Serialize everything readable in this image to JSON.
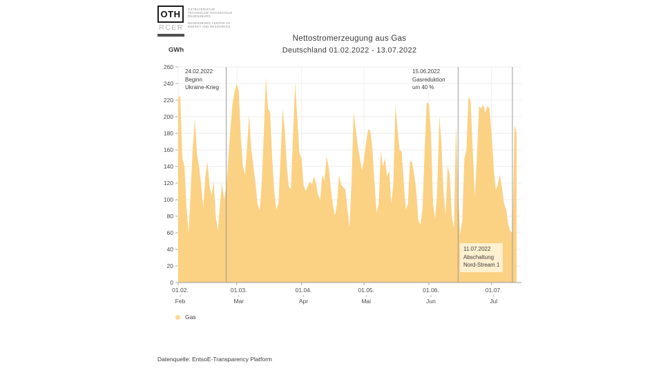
{
  "logo": {
    "oth": "OTH",
    "rcer": "RCER",
    "inst_line1": "Ostbayerische",
    "inst_line2": "Technische Hochschule",
    "inst_line3": "Regensburg",
    "center_line1": "Regensburg Center of",
    "center_line2": "Energy and Resources"
  },
  "chart": {
    "title": "Nettostromerzeugung aus Gas",
    "subtitle": "Deutschland 01.02.2022 - 13.07.2022",
    "y_unit": "GWh"
  },
  "legend": {
    "label": "Gas",
    "color": "#fbd184"
  },
  "footer": {
    "source": "Datenquelle: EntsoE-Transparency Platform"
  },
  "chart_data": {
    "type": "area",
    "title": "Nettostromerzeugung aus Gas",
    "subtitle": "Deutschland 01.02.2022 - 13.07.2022",
    "xlabel": "",
    "ylabel": "GWh",
    "ylim": [
      0,
      260
    ],
    "ytick_step": 20,
    "grid": true,
    "legend_position": "bottom-left",
    "x_start_date": "01.02.2022",
    "x_end_date": "13.07.2022",
    "x_ticks": [
      {
        "index": 0,
        "label": "01.02.",
        "month": "Feb"
      },
      {
        "index": 28,
        "label": "01.03.",
        "month": "Mar"
      },
      {
        "index": 59,
        "label": "01.04.",
        "month": "Apr"
      },
      {
        "index": 89,
        "label": "01.05.",
        "month": "Mai"
      },
      {
        "index": 120,
        "label": "01.06.",
        "month": "Jun"
      },
      {
        "index": 150,
        "label": "01.07.",
        "month": "Jul"
      }
    ],
    "series": [
      {
        "name": "Gas",
        "color": "#fbd184",
        "unit": "GWh",
        "values": [
          222,
          226,
          150,
          140,
          90,
          60,
          110,
          165,
          198,
          155,
          140,
          118,
          90,
          128,
          146,
          118,
          105,
          122,
          80,
          62,
          95,
          120,
          100,
          115,
          150,
          185,
          215,
          230,
          240,
          232,
          175,
          140,
          130,
          165,
          203,
          160,
          141,
          120,
          95,
          87,
          120,
          180,
          248,
          210,
          205,
          150,
          110,
          88,
          95,
          150,
          209,
          185,
          140,
          115,
          113,
          180,
          241,
          200,
          157,
          150,
          118,
          110,
          116,
          122,
          118,
          128,
          120,
          105,
          100,
          130,
          122,
          152,
          140,
          115,
          95,
          80,
          95,
          130,
          118,
          115,
          112,
          90,
          66,
          120,
          206,
          185,
          165,
          150,
          135,
          150,
          170,
          185,
          183,
          160,
          120,
          84,
          95,
          159,
          140,
          150,
          128,
          135,
          95,
          118,
          214,
          185,
          160,
          158,
          120,
          88,
          95,
          147,
          145,
          130,
          110,
          75,
          70,
          90,
          160,
          218,
          215,
          180,
          95,
          77,
          110,
          201,
          170,
          110,
          82,
          141,
          130,
          80,
          65,
          191,
          110,
          58,
          75,
          150,
          160,
          225,
          218,
          160,
          102,
          150,
          213,
          210,
          215,
          205,
          213,
          210,
          180,
          140,
          112,
          118,
          130,
          115,
          95,
          88,
          70,
          62,
          60,
          190,
          180
        ]
      }
    ],
    "annotations": [
      {
        "day_index": 23,
        "boxed": false,
        "lines": [
          "24.02.2022",
          "Beginn",
          "Ukraine-Krieg"
        ]
      },
      {
        "day_index": 134,
        "boxed": false,
        "lines": [
          "15.06.2022",
          "Gasreduktion",
          "um 40 %"
        ]
      },
      {
        "day_index": 160,
        "boxed": true,
        "lines": [
          "11.07.2022",
          "Abschaltung",
          "Nord-Stream 1"
        ]
      }
    ]
  }
}
